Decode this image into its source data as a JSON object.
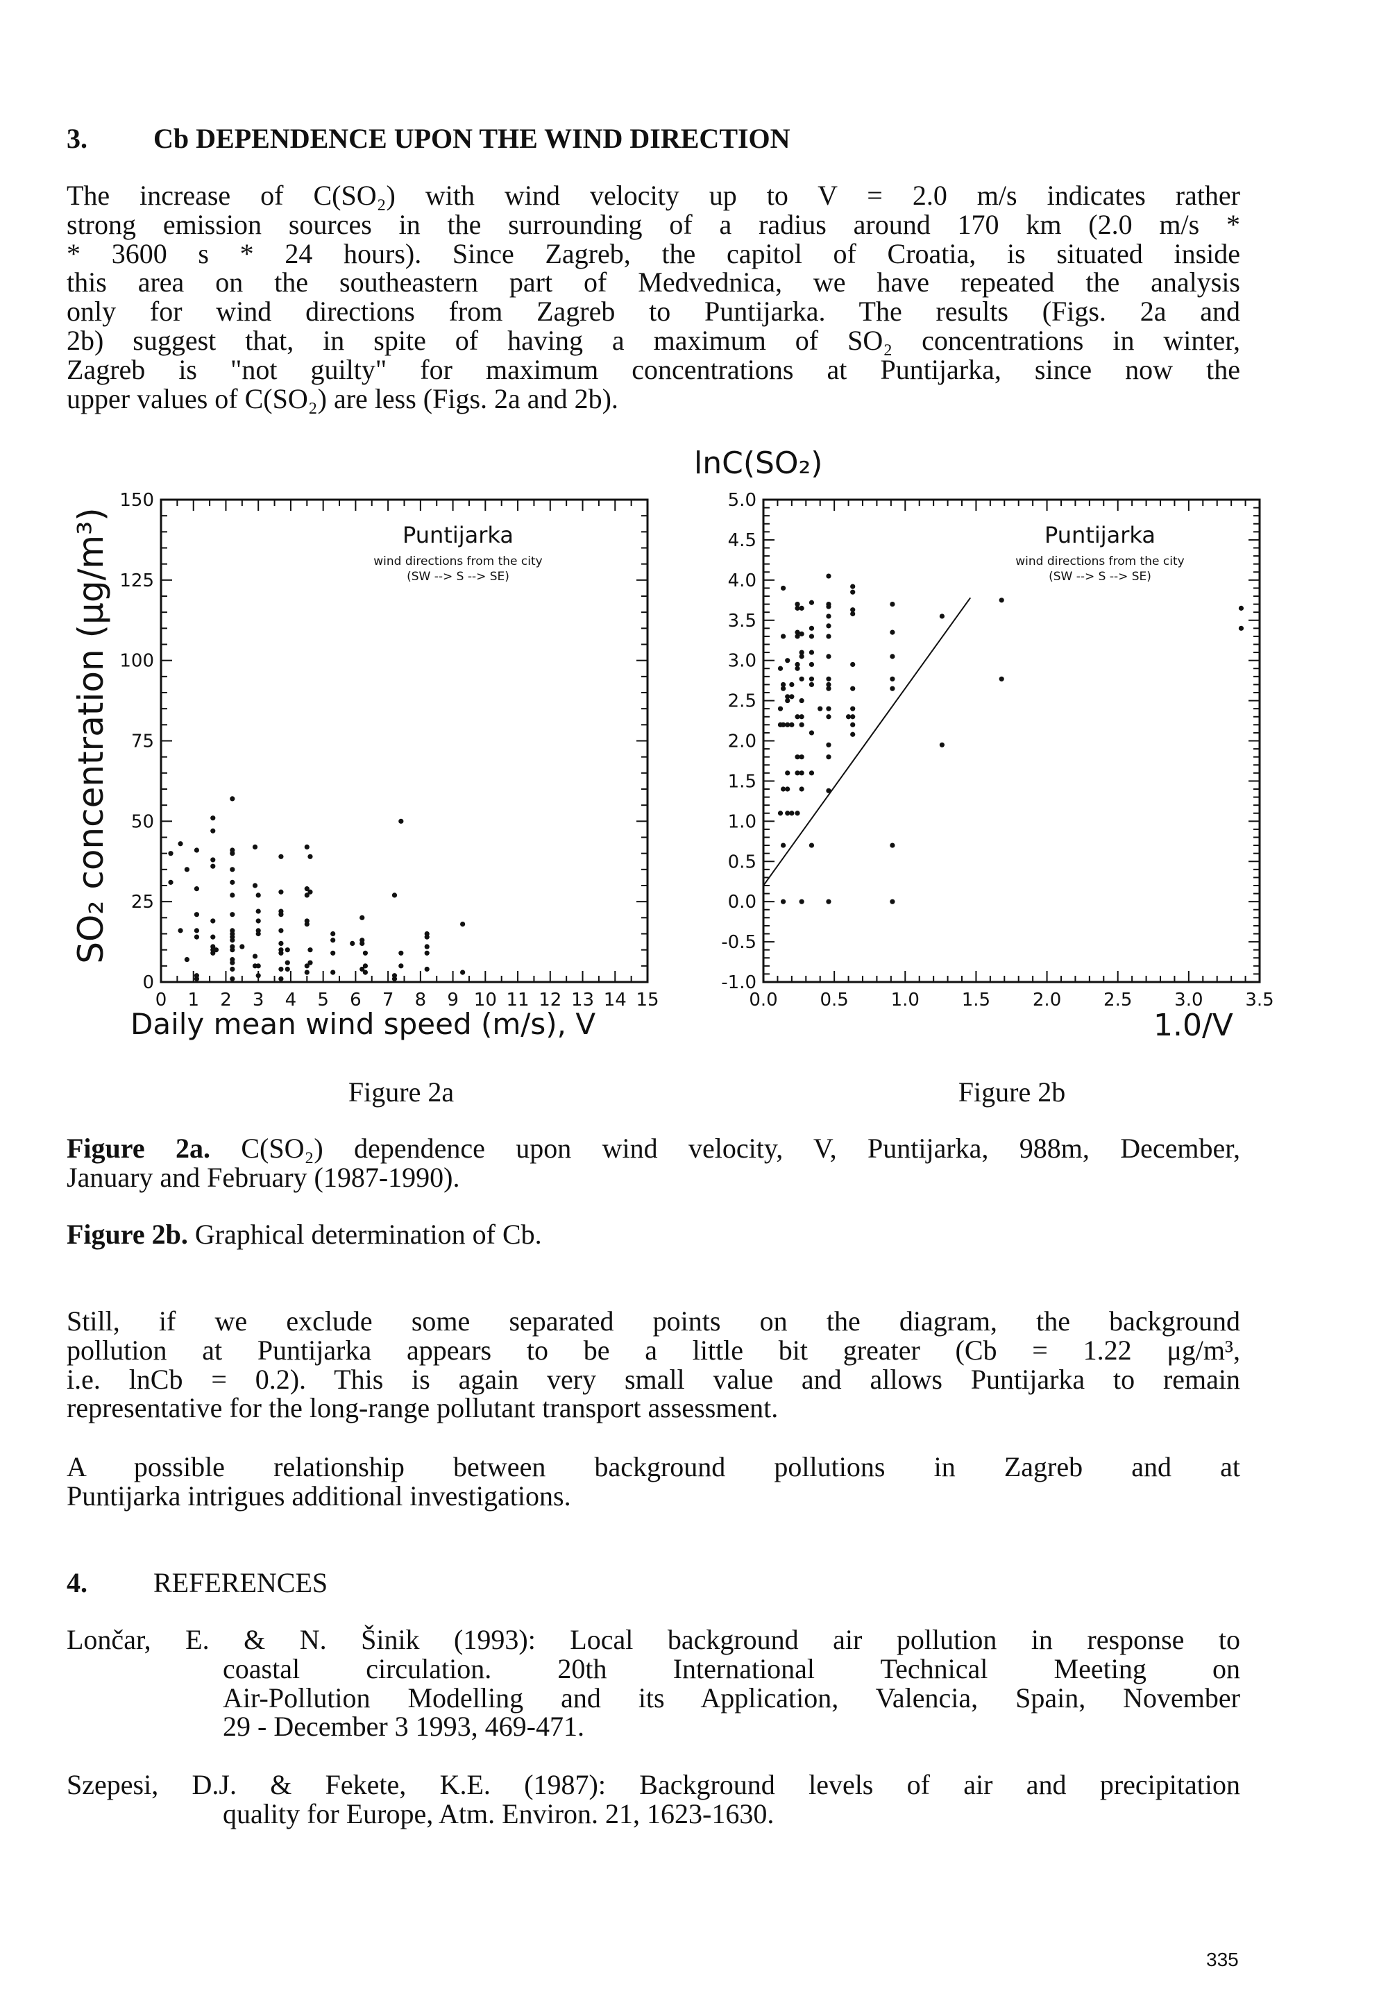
{
  "section3": {
    "number": "3.",
    "title": "Cb DEPENDENCE UPON THE WIND DIRECTION",
    "paragraph": [
      "The increase of C(SO₂) with wind velocity up to V = 2.0 m/s indicates rather",
      "strong emission sources in the surrounding of a radius around 170 km (2.0 m/s *",
      "* 3600 s * 24 hours). Since Zagreb, the capitol of Croatia, is situated inside",
      "this area on the southeastern part of Medvednica, we have repeated the analysis",
      "only for wind directions from Zagreb to Puntijarka. The results (Figs. 2a and",
      "2b) suggest that, in spite of having a maximum of SO₂ concentrations in winter,",
      "Zagreb is \"not guilty\" for maximum concentrations at Puntijarka, since now the",
      "upper values of C(SO₂) are less (Figs. 2a and 2b)."
    ]
  },
  "figure_labels": {
    "a": "Figure 2a",
    "b": "Figure 2b"
  },
  "captions": {
    "a_label": "Figure 2a.",
    "a_lines": [
      " C(SO₂) dependence upon wind velocity, V, Puntijarka, 988m, December,",
      "January and February (1987-1990)."
    ],
    "b_label": "Figure 2b.",
    "b_text": " Graphical determination of Cb."
  },
  "paragraph2": [
    "Still, if we exclude some separated points on the diagram, the background",
    "pollution at Puntijarka appears to be a little bit greater (Cb = 1.22 μg/m³,",
    "i.e. lnCb = 0.2). This is again very small value and allows Puntijarka to remain",
    "representative for the long-range pollutant transport assessment."
  ],
  "paragraph3": [
    "A possible relationship between background pollutions in Zagreb and at",
    "Puntijarka intrigues additional investigations."
  ],
  "section4": {
    "number": "4.",
    "title": "REFERENCES"
  },
  "references": [
    {
      "lines": [
        "Lončar, E. & N. Šinik (1993): Local background air pollution in response to",
        "coastal circulation. 20th International Technical Meeting on",
        "Air-Pollution Modelling and its Application, Valencia, Spain, November",
        "29 - December 3 1993, 469-471."
      ]
    },
    {
      "lines": [
        "Szepesi, D.J. & Fekete, K.E. (1987): Background levels of air and precipitation",
        "quality for Europe, Atm. Environ. 21, 1623-1630."
      ]
    }
  ],
  "page_number": "335",
  "chart_data": [
    {
      "type": "scatter",
      "title": "Puntijarka",
      "subtitle": [
        "wind directions from the city",
        "(SW --> S --> SE)"
      ],
      "xlabel": "Daily mean wind speed (m/s), V",
      "ylabel": "SO₂ concentration (μg/m³)",
      "xlim": [
        0,
        15
      ],
      "ylim": [
        0,
        150
      ],
      "xticks": [
        0,
        1,
        2,
        3,
        4,
        5,
        6,
        7,
        8,
        9,
        10,
        11,
        12,
        13,
        14,
        15
      ],
      "yticks": [
        0,
        25,
        50,
        75,
        100,
        125,
        150
      ],
      "grid": false,
      "points": [
        [
          0.3,
          40
        ],
        [
          0.3,
          31
        ],
        [
          0.6,
          43
        ],
        [
          0.6,
          16
        ],
        [
          0.8,
          35
        ],
        [
          0.8,
          7
        ],
        [
          1.1,
          41
        ],
        [
          1.1,
          29
        ],
        [
          1.1,
          21
        ],
        [
          1.1,
          16
        ],
        [
          1.1,
          14
        ],
        [
          1.1,
          2
        ],
        [
          1.1,
          1
        ],
        [
          1.6,
          51
        ],
        [
          1.6,
          47
        ],
        [
          1.6,
          38
        ],
        [
          1.6,
          36
        ],
        [
          1.6,
          19
        ],
        [
          1.6,
          14
        ],
        [
          1.6,
          11
        ],
        [
          1.6,
          10
        ],
        [
          1.6,
          9
        ],
        [
          1.7,
          10
        ],
        [
          2.2,
          57
        ],
        [
          2.2,
          41
        ],
        [
          2.2,
          40
        ],
        [
          2.2,
          35
        ],
        [
          2.2,
          31
        ],
        [
          2.2,
          27
        ],
        [
          2.2,
          21
        ],
        [
          2.2,
          16
        ],
        [
          2.2,
          15
        ],
        [
          2.2,
          14
        ],
        [
          2.2,
          13
        ],
        [
          2.2,
          11
        ],
        [
          2.2,
          10
        ],
        [
          2.2,
          7
        ],
        [
          2.2,
          6
        ],
        [
          2.2,
          4
        ],
        [
          2.2,
          1
        ],
        [
          2.5,
          11
        ],
        [
          2.9,
          42
        ],
        [
          2.9,
          30
        ],
        [
          2.9,
          8
        ],
        [
          2.9,
          5
        ],
        [
          3.0,
          27
        ],
        [
          3.0,
          22
        ],
        [
          3.0,
          19
        ],
        [
          3.0,
          16
        ],
        [
          3.0,
          15
        ],
        [
          3.0,
          5
        ],
        [
          3.0,
          2
        ],
        [
          3.7,
          39
        ],
        [
          3.7,
          28
        ],
        [
          3.7,
          22
        ],
        [
          3.7,
          21
        ],
        [
          3.7,
          16
        ],
        [
          3.7,
          12
        ],
        [
          3.7,
          10
        ],
        [
          3.7,
          9
        ],
        [
          3.7,
          4
        ],
        [
          3.7,
          1
        ],
        [
          3.9,
          10
        ],
        [
          3.9,
          6
        ],
        [
          3.9,
          4
        ],
        [
          4.5,
          42
        ],
        [
          4.5,
          29
        ],
        [
          4.5,
          27
        ],
        [
          4.5,
          19
        ],
        [
          4.5,
          18
        ],
        [
          4.5,
          5
        ],
        [
          4.5,
          3
        ],
        [
          4.6,
          39
        ],
        [
          4.6,
          28
        ],
        [
          4.6,
          10
        ],
        [
          4.6,
          6
        ],
        [
          5.3,
          15
        ],
        [
          5.3,
          13
        ],
        [
          5.3,
          9
        ],
        [
          5.3,
          3
        ],
        [
          5.9,
          12
        ],
        [
          6.2,
          20
        ],
        [
          6.2,
          13
        ],
        [
          6.2,
          12
        ],
        [
          6.2,
          4
        ],
        [
          6.3,
          9
        ],
        [
          6.3,
          5
        ],
        [
          6.3,
          3
        ],
        [
          7.2,
          27
        ],
        [
          7.2,
          2
        ],
        [
          7.2,
          1
        ],
        [
          7.4,
          50
        ],
        [
          7.4,
          9
        ],
        [
          7.4,
          5
        ],
        [
          8.2,
          15
        ],
        [
          8.2,
          14
        ],
        [
          8.2,
          11
        ],
        [
          8.2,
          9
        ],
        [
          8.2,
          4
        ],
        [
          9.3,
          18
        ],
        [
          9.3,
          3
        ]
      ]
    },
    {
      "type": "scatter",
      "title": "Puntijarka",
      "subtitle": [
        "wind directions from the city",
        "(SW --> S --> SE)"
      ],
      "xlabel": "1.0/V",
      "ylabel": "lnC(SO₂)",
      "xlim": [
        0,
        3.5
      ],
      "ylim": [
        -1.0,
        5.0
      ],
      "xticks": [
        "0.0",
        "0.5",
        "1.0",
        "1.5",
        "2.0",
        "2.5",
        "3.0",
        "3.5"
      ],
      "yticks": [
        "-1.0",
        "-0.5",
        "0.0",
        "0.5",
        "1.0",
        "1.5",
        "2.0",
        "2.5",
        "3.0",
        "3.5",
        "4.0",
        "4.5",
        "5.0"
      ],
      "grid": false,
      "fit_line": [
        [
          0,
          0.2
        ],
        [
          1.46,
          3.78
        ]
      ],
      "points": [
        [
          0.12,
          2.9
        ],
        [
          0.12,
          2.2
        ],
        [
          0.12,
          1.1
        ],
        [
          0.12,
          2.4
        ],
        [
          0.14,
          3.9
        ],
        [
          0.14,
          3.3
        ],
        [
          0.14,
          2.7
        ],
        [
          0.14,
          2.65
        ],
        [
          0.14,
          2.2
        ],
        [
          0.14,
          1.4
        ],
        [
          0.14,
          0.7
        ],
        [
          0.14,
          0.0
        ],
        [
          0.17,
          3.0
        ],
        [
          0.17,
          2.55
        ],
        [
          0.17,
          2.5
        ],
        [
          0.17,
          2.2
        ],
        [
          0.17,
          1.6
        ],
        [
          0.17,
          1.4
        ],
        [
          0.17,
          1.1
        ],
        [
          0.2,
          2.7
        ],
        [
          0.2,
          2.55
        ],
        [
          0.2,
          2.2
        ],
        [
          0.2,
          1.1
        ],
        [
          0.24,
          3.7
        ],
        [
          0.24,
          3.65
        ],
        [
          0.24,
          3.35
        ],
        [
          0.24,
          3.3
        ],
        [
          0.24,
          2.95
        ],
        [
          0.24,
          2.9
        ],
        [
          0.24,
          2.3
        ],
        [
          0.24,
          1.8
        ],
        [
          0.24,
          1.6
        ],
        [
          0.24,
          1.1
        ],
        [
          0.27,
          3.65
        ],
        [
          0.27,
          3.33
        ],
        [
          0.27,
          3.1
        ],
        [
          0.27,
          3.05
        ],
        [
          0.27,
          2.77
        ],
        [
          0.27,
          2.5
        ],
        [
          0.27,
          2.3
        ],
        [
          0.27,
          2.2
        ],
        [
          0.27,
          1.8
        ],
        [
          0.27,
          1.6
        ],
        [
          0.27,
          1.4
        ],
        [
          0.27,
          0.0
        ],
        [
          0.34,
          3.72
        ],
        [
          0.34,
          3.4
        ],
        [
          0.34,
          3.3
        ],
        [
          0.34,
          3.1
        ],
        [
          0.34,
          2.95
        ],
        [
          0.34,
          2.77
        ],
        [
          0.34,
          2.7
        ],
        [
          0.34,
          2.1
        ],
        [
          0.34,
          1.6
        ],
        [
          0.34,
          0.7
        ],
        [
          0.4,
          2.4
        ],
        [
          0.46,
          4.05
        ],
        [
          0.46,
          3.7
        ],
        [
          0.46,
          3.67
        ],
        [
          0.46,
          3.55
        ],
        [
          0.46,
          3.43
        ],
        [
          0.46,
          3.3
        ],
        [
          0.46,
          3.05
        ],
        [
          0.46,
          2.77
        ],
        [
          0.46,
          2.7
        ],
        [
          0.46,
          2.65
        ],
        [
          0.46,
          2.4
        ],
        [
          0.46,
          2.3
        ],
        [
          0.46,
          1.95
        ],
        [
          0.46,
          1.8
        ],
        [
          0.46,
          1.38
        ],
        [
          0.46,
          0.0
        ],
        [
          0.6,
          2.3
        ],
        [
          0.63,
          3.92
        ],
        [
          0.63,
          3.85
        ],
        [
          0.63,
          3.63
        ],
        [
          0.63,
          3.58
        ],
        [
          0.63,
          2.95
        ],
        [
          0.63,
          2.65
        ],
        [
          0.63,
          2.4
        ],
        [
          0.63,
          2.3
        ],
        [
          0.63,
          2.2
        ],
        [
          0.63,
          2.08
        ],
        [
          0.91,
          3.7
        ],
        [
          0.91,
          3.35
        ],
        [
          0.91,
          3.05
        ],
        [
          0.91,
          2.77
        ],
        [
          0.91,
          2.65
        ],
        [
          0.91,
          0.7
        ],
        [
          0.91,
          0.0
        ],
        [
          1.26,
          3.55
        ],
        [
          1.26,
          1.95
        ],
        [
          1.68,
          3.75
        ],
        [
          1.68,
          2.77
        ],
        [
          3.37,
          3.65
        ],
        [
          3.37,
          3.4
        ]
      ]
    }
  ]
}
